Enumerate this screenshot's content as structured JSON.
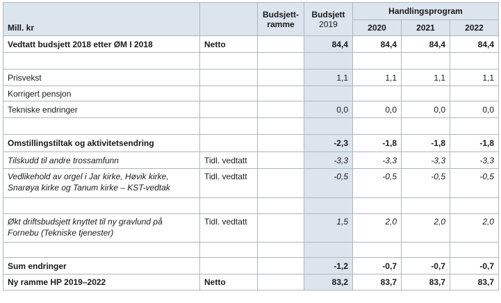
{
  "header": {
    "mill": "Mill. kr",
    "budsjettramme": "Budsjett-\nramme",
    "budsjett": "Budsjett",
    "budsjett_year": "2019",
    "handlingsprogram": "Handlingsprogram",
    "years": [
      "2020",
      "2021",
      "2022"
    ]
  },
  "rows": [
    {
      "label": "Vedtatt budsjett 2018 etter ØM I 2018",
      "note": "Netto",
      "b2019": "84,4",
      "y2020": "84,4",
      "y2021": "84,4",
      "y2022": "84,4",
      "style": "bold"
    },
    {
      "label": "",
      "note": "",
      "b2019": "",
      "y2020": "",
      "y2021": "",
      "y2022": "",
      "style": "blank"
    },
    {
      "label": "Prisvekst",
      "note": "",
      "b2019": "1,1",
      "y2020": "1,1",
      "y2021": "1,1",
      "y2022": "1,1",
      "style": "normal"
    },
    {
      "label": "Korrigert pensjon",
      "note": "",
      "b2019": "",
      "y2020": "",
      "y2021": "",
      "y2022": "",
      "style": "normal"
    },
    {
      "label": "Tekniske endringer",
      "note": "",
      "b2019": "0,0",
      "y2020": "0,0",
      "y2021": "0,0",
      "y2022": "0,0",
      "style": "normal"
    },
    {
      "label": "",
      "note": "",
      "b2019": "",
      "y2020": "",
      "y2021": "",
      "y2022": "",
      "style": "blank"
    },
    {
      "label": "Omstillingstiltak og aktivitetsendring",
      "note": "",
      "b2019": "-2,3",
      "y2020": "-1,8",
      "y2021": "-1,8",
      "y2022": "-1,8",
      "style": "bold"
    },
    {
      "label": "Tilskudd til andre trossamfunn",
      "note": "Tidl. vedtatt",
      "b2019": "-3,3",
      "y2020": "-3,3",
      "y2021": "-3,3",
      "y2022": "-3,3",
      "style": "italic"
    },
    {
      "label": "Vedlikehold av orgel i Jar kirke, Høvik kirke, Snarøya kirke og Tanum kirke – KST-vedtak",
      "note": "Tidl. vedtatt",
      "b2019": "-0,5",
      "y2020": "-0,5",
      "y2021": "-0,5",
      "y2022": "-0,5",
      "style": "italic-tall"
    },
    {
      "label": "",
      "note": "",
      "b2019": "",
      "y2020": "",
      "y2021": "",
      "y2022": "",
      "style": "blank"
    },
    {
      "label": "Økt driftsbudsjett knyttet til ny gravlund på Fornebu (Tekniske tjenester)",
      "note": "Tidl. vedtatt",
      "b2019": "1,5",
      "y2020": "2,0",
      "y2021": "2,0",
      "y2022": "2,0",
      "style": "italic-tall"
    },
    {
      "label": "",
      "note": "",
      "b2019": "",
      "y2020": "",
      "y2021": "",
      "y2022": "",
      "style": "blank"
    },
    {
      "label": "Sum endringer",
      "note": "",
      "b2019": "-1,2",
      "y2020": "-0,7",
      "y2021": "-0,7",
      "y2022": "-0,7",
      "style": "bold"
    },
    {
      "label": "Ny ramme HP 2019–2022",
      "note": "Netto",
      "b2019": "83,2",
      "y2020": "83,7",
      "y2021": "83,7",
      "y2022": "83,7",
      "style": "bold"
    }
  ]
}
